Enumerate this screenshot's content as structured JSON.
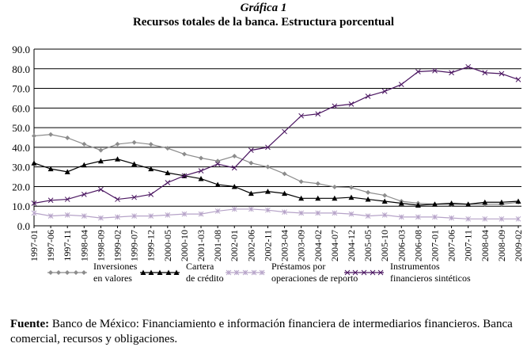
{
  "figure_number": "Gráfica 1",
  "title": "Recursos totales de la banca. Estructura porcentual",
  "source_label": "Fuente:",
  "source_text": "Banco de México: Financiamiento e información financiera de intermediarios financieros. Banca comercial, recursos y obligaciones.",
  "colors": {
    "inversiones": "#8c8c8c",
    "cartera": "#000000",
    "prestamos": "#b6a3c8",
    "instrumentos": "#4a1560"
  },
  "chart_data": {
    "type": "line",
    "title": "Recursos totales de la banca. Estructura porcentual",
    "xlabel": "",
    "ylabel": "",
    "ylim": [
      0,
      90
    ],
    "yticks": [
      "0.0",
      "10.0",
      "20.0",
      "30.0",
      "40.0",
      "50.0",
      "60.0",
      "70.0",
      "80.0",
      "90.0"
    ],
    "grid": "horizontal",
    "legend_position": "bottom",
    "categories": [
      "1997-01",
      "1997-06",
      "1997-11",
      "1998-04",
      "1998-09",
      "1999-02",
      "1999-07",
      "1999-12",
      "2000-05",
      "2000-10",
      "2001-03",
      "2001-08",
      "2002-01",
      "2002-06",
      "2002-11",
      "2003-04",
      "2003-09",
      "2004-02",
      "2004-07",
      "2004-12",
      "2005-05",
      "2005-10",
      "2006-03",
      "2006-08",
      "2007-01",
      "2007-06",
      "2007-11",
      "2008-04",
      "2008-09",
      "2009-02"
    ],
    "series": [
      {
        "name": "Inversiones en valores",
        "marker": "diamond",
        "values": [
          45.8,
          46.5,
          44.8,
          41.6,
          38.5,
          41.6,
          42.5,
          41.5,
          39.5,
          36.5,
          34.5,
          33.0,
          35.5,
          32.0,
          30.0,
          26.5,
          22.5,
          21.5,
          19.8,
          19.5,
          17.0,
          15.5,
          12.5,
          11.5,
          11.0,
          11.0,
          11.0,
          11.0,
          11.0,
          12.0
        ]
      },
      {
        "name": "Cartera de crédito",
        "marker": "triangle",
        "values": [
          32.0,
          29.0,
          27.5,
          31.0,
          33.0,
          34.0,
          31.5,
          29.0,
          27.0,
          25.5,
          24.0,
          21.0,
          20.0,
          16.5,
          17.5,
          16.5,
          14.0,
          14.0,
          14.0,
          14.5,
          13.5,
          12.5,
          11.5,
          10.5,
          11.0,
          11.5,
          11.0,
          12.0,
          12.0,
          12.5
        ]
      },
      {
        "name": "Préstamos por operaciones de reporto",
        "marker": "asterisk",
        "values": [
          6.5,
          5.0,
          5.5,
          5.0,
          4.0,
          4.5,
          5.0,
          5.0,
          5.5,
          6.0,
          6.0,
          7.5,
          8.5,
          8.5,
          8.0,
          7.0,
          6.5,
          6.5,
          6.5,
          6.0,
          5.0,
          5.5,
          4.5,
          4.5,
          4.5,
          4.0,
          3.5,
          3.5,
          3.5,
          3.5
        ]
      },
      {
        "name": "Instrumentos financieros sintéticos",
        "marker": "x",
        "values": [
          11.5,
          13.0,
          13.5,
          16.0,
          18.5,
          13.5,
          14.5,
          16.0,
          22.0,
          25.5,
          28.0,
          31.5,
          29.5,
          38.5,
          40.0,
          48.0,
          56.0,
          57.0,
          61.0,
          62.0,
          66.0,
          68.5,
          72.0,
          78.5,
          79.0,
          78.0,
          81.0,
          78.0,
          77.5,
          74.5
        ]
      }
    ]
  }
}
